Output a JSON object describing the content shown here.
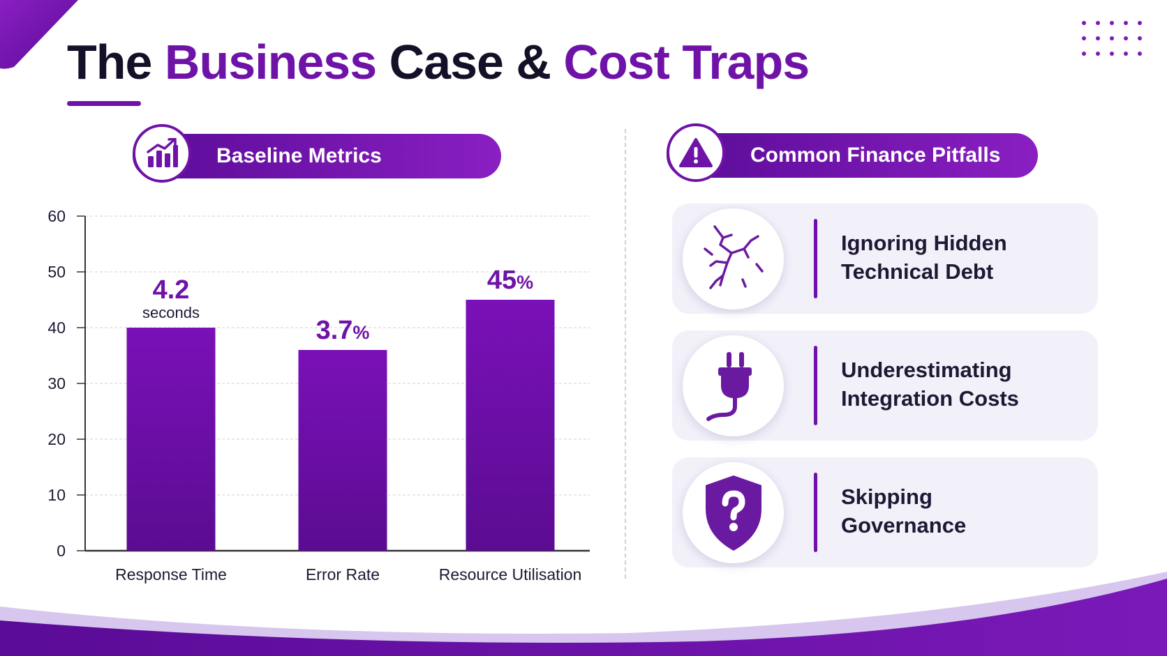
{
  "title": {
    "part1": "The",
    "part2": "Business",
    "part3": "Case &",
    "part4": "Cost Traps"
  },
  "colors": {
    "accent": "#6f12a8",
    "accent_dark": "#5a0b97",
    "card_bg": "#f2f0f9",
    "title_dark": "#141028"
  },
  "left_panel": {
    "pill_label": "Baseline Metrics",
    "icon": "bar-chart-growth-icon"
  },
  "right_panel": {
    "pill_label": "Common Finance Pitfalls",
    "icon": "warning-triangle-icon",
    "pitfalls": [
      {
        "line1": "Ignoring Hidden",
        "line2": "Technical Debt",
        "icon": "cracked-surface-icon"
      },
      {
        "line1": "Underestimating",
        "line2": "Integration Costs",
        "icon": "power-plug-icon"
      },
      {
        "line1": "Skipping",
        "line2": "Governance",
        "icon": "shield-question-icon"
      }
    ]
  },
  "chart_data": {
    "type": "bar",
    "categories": [
      "Response Time",
      "Error Rate",
      "Resource Utilisation"
    ],
    "values": [
      40,
      36,
      45
    ],
    "data_labels": [
      {
        "value": "4.2",
        "unit": "seconds"
      },
      {
        "value": "3.7",
        "unit": "%"
      },
      {
        "value": "45",
        "unit": "%"
      }
    ],
    "ylim": [
      0,
      60
    ],
    "yticks": [
      0,
      10,
      20,
      30,
      40,
      50,
      60
    ],
    "grid": true,
    "bar_color": "#6f12a8",
    "title": "",
    "xlabel": "",
    "ylabel": ""
  }
}
